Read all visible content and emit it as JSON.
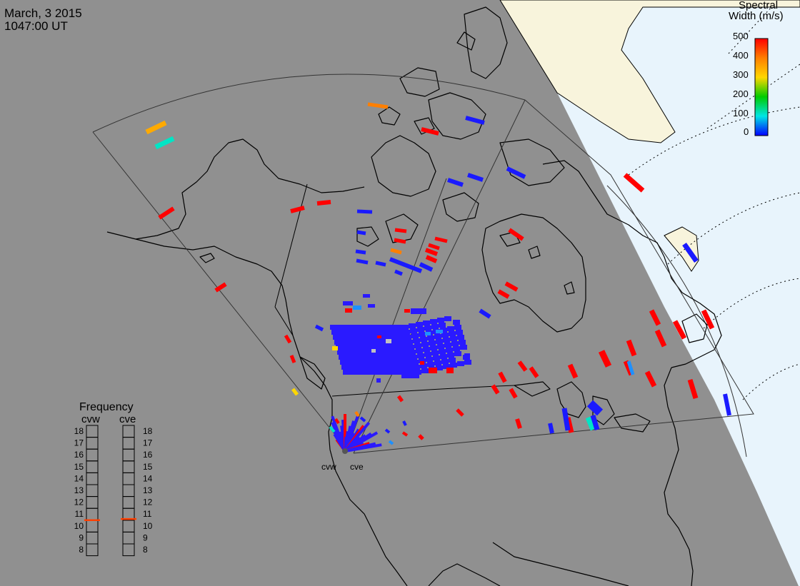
{
  "header": {
    "date": "March, 3 2015",
    "time": "1047:00 UT"
  },
  "colorbar": {
    "title_line1": "Spectral",
    "title_line2": "Width (m/s)",
    "ticks": [
      "500",
      "400",
      "300",
      "200",
      "100",
      "0"
    ],
    "colors": [
      "#ff0000",
      "#ff7f00",
      "#ffd700",
      "#00cc00",
      "#00e5e5",
      "#0000ff"
    ]
  },
  "frequency": {
    "title": "Frequency",
    "radars": [
      "cvw",
      "cve"
    ],
    "scale": [
      "18",
      "17",
      "16",
      "15",
      "14",
      "13",
      "12",
      "11",
      "10",
      "9",
      "8"
    ],
    "cvw_value_mhz": 10.5,
    "cve_value_mhz": 10.6,
    "marker_color": "#ff4000"
  },
  "radar_sites": [
    "cvw",
    "cve"
  ],
  "colors": {
    "background": "#909090",
    "ocean_light": "#e8f4fc",
    "ice": "#f8f4dc",
    "coastline": "#000000",
    "fov_outline": "#333333"
  }
}
